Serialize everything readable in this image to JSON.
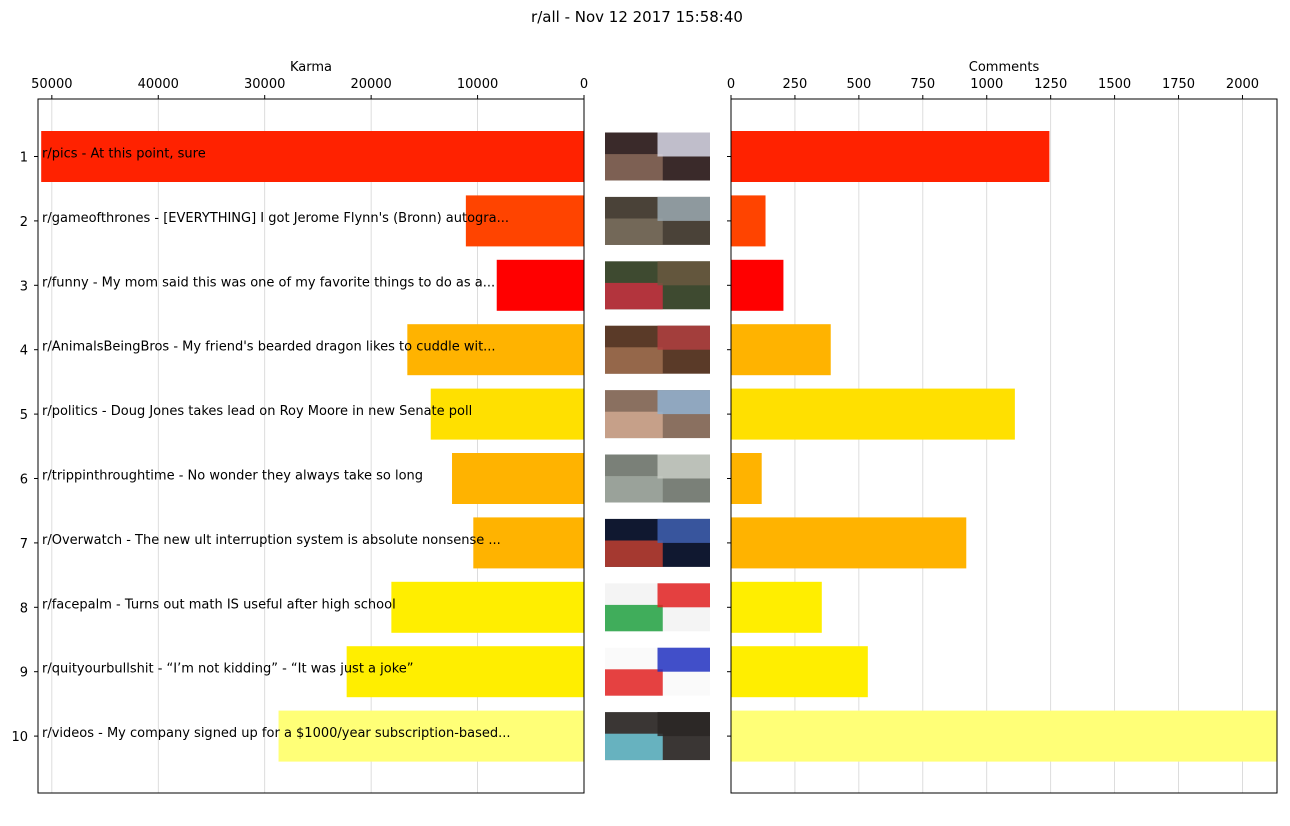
{
  "chart_data": {
    "type": "bar",
    "title": "r/all - Nov 12 2017 15:58:40",
    "karma_panel": {
      "xlabel": "Karma",
      "xlim": [
        51300,
        0
      ],
      "xticks": [
        50000,
        40000,
        30000,
        20000,
        10000,
        0
      ],
      "grid": true
    },
    "comments_panel": {
      "xlabel": "Comments",
      "xlim": [
        0,
        2135
      ],
      "xticks": [
        0,
        250,
        500,
        750,
        1000,
        1250,
        1500,
        1750,
        2000
      ],
      "grid": true
    },
    "categories": [
      "1",
      "2",
      "3",
      "4",
      "5",
      "6",
      "7",
      "8",
      "9",
      "10"
    ],
    "posts": [
      {
        "rank": "1",
        "label": "r/pics - At this point, sure",
        "karma": 51000,
        "comments": 1245,
        "color": "#ff2200",
        "thumb": [
          "#3a2a2a",
          "#8a6a5a",
          "#d8d8e8"
        ]
      },
      {
        "rank": "2",
        "label": "r/gameofthrones - [EVERYTHING] I got Jerome Flynn's (Bronn) autogra...",
        "karma": 11100,
        "comments": 135,
        "color": "#ff4400",
        "thumb": [
          "#4a4238",
          "#7a6e5e",
          "#9aa8b0"
        ]
      },
      {
        "rank": "3",
        "label": "r/funny - My mom said this was one of my favorite things to do as a...",
        "karma": 8200,
        "comments": 205,
        "color": "#ff0000",
        "thumb": [
          "#3e4a30",
          "#c83040",
          "#6a5840"
        ]
      },
      {
        "rank": "4",
        "label": "r/AnimalsBeingBros - My friend's bearded dragon likes to cuddle wit...",
        "karma": 16600,
        "comments": 390,
        "color": "#ffb300",
        "thumb": [
          "#5a3a28",
          "#a07050",
          "#b04040"
        ]
      },
      {
        "rank": "5",
        "label": "r/politics - Doug Jones takes lead on Roy Moore in new Senate poll",
        "karma": 14400,
        "comments": 1110,
        "color": "#ffe000",
        "thumb": [
          "#8a7060",
          "#d0a890",
          "#90b0d0"
        ]
      },
      {
        "rank": "6",
        "label": "r/trippinthroughtime - No wonder they always take so long",
        "karma": 12400,
        "comments": 120,
        "color": "#ffb300",
        "thumb": [
          "#7a8078",
          "#a0a8a0",
          "#c8ccc4"
        ]
      },
      {
        "rank": "7",
        "label": "r/Overwatch - The new ult interruption system is absolute nonsense ...",
        "karma": 10400,
        "comments": 920,
        "color": "#ffb300",
        "thumb": [
          "#101830",
          "#c04030",
          "#4060b0"
        ]
      },
      {
        "rank": "8",
        "label": "r/facepalm - Turns out math IS useful after high school",
        "karma": 18100,
        "comments": 355,
        "color": "#ffee00",
        "thumb": [
          "#f4f4f4",
          "#20a040",
          "#e02020"
        ]
      },
      {
        "rank": "9",
        "label": "r/quityourbullshit - “I’m not kidding” - “It was just a joke”",
        "karma": 22300,
        "comments": 535,
        "color": "#ffee00",
        "thumb": [
          "#fafafa",
          "#e02020",
          "#2030c0"
        ]
      },
      {
        "rank": "10",
        "label": "r/videos - My company signed up for a $1000/year subscription-based...",
        "karma": 28700,
        "comments": 2135,
        "color": "#ffff77",
        "thumb": [
          "#3a3634",
          "#70c8d8",
          "#2a2624"
        ]
      }
    ]
  }
}
